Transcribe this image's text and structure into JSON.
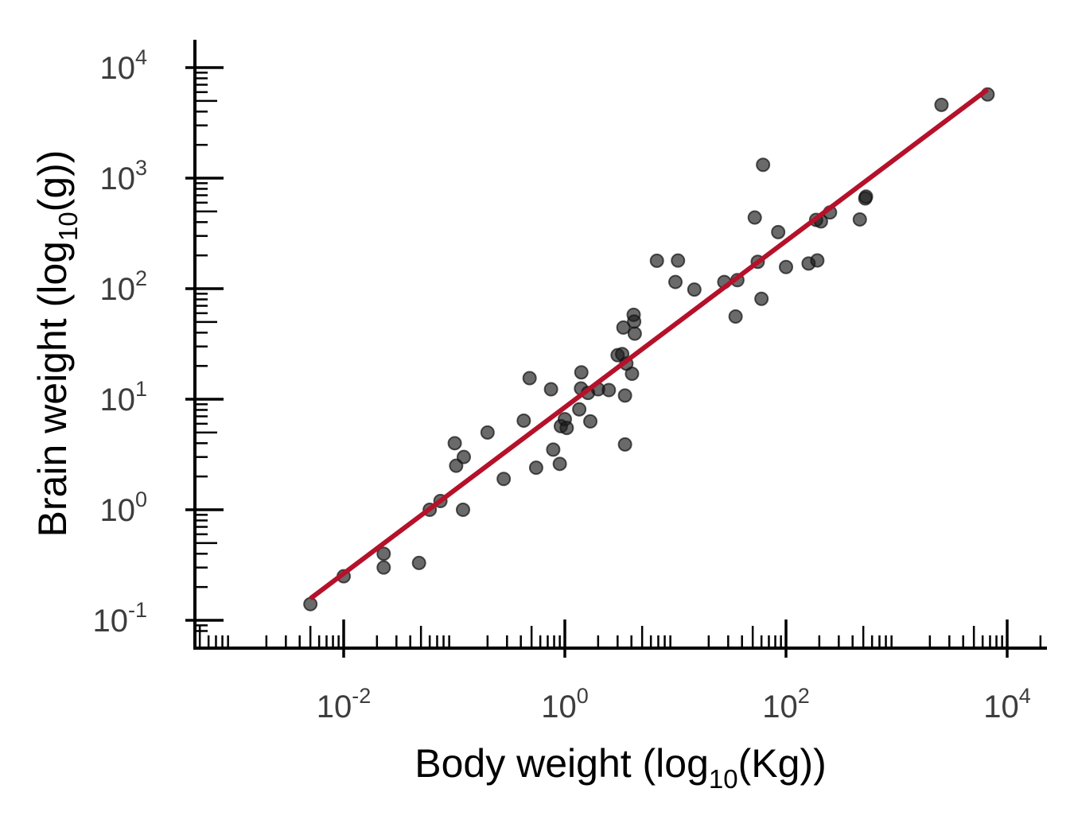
{
  "chart_data": {
    "type": "scatter",
    "xlabel": {
      "main": "Body weight (log",
      "sub": "10",
      "tail": "(Kg))"
    },
    "ylabel": {
      "main": "Brain weight (log",
      "sub": "10",
      "tail": "(g))"
    },
    "x_scale": "log10",
    "y_scale": "log10",
    "xlim": [
      0.0005,
      20000
    ],
    "ylim": [
      0.077,
      15000
    ],
    "x_ticks": [
      {
        "value": 0.01,
        "base": "10",
        "exp": "-2"
      },
      {
        "value": 1,
        "base": "10",
        "exp": "0"
      },
      {
        "value": 100,
        "base": "10",
        "exp": "2"
      },
      {
        "value": 10000,
        "base": "10",
        "exp": "4"
      }
    ],
    "y_ticks": [
      {
        "value": 0.1,
        "base": "10",
        "exp": "-1"
      },
      {
        "value": 1,
        "base": "10",
        "exp": "0"
      },
      {
        "value": 10,
        "base": "10",
        "exp": "1"
      },
      {
        "value": 100,
        "base": "10",
        "exp": "2"
      },
      {
        "value": 1000,
        "base": "10",
        "exp": "3"
      },
      {
        "value": 10000,
        "base": "10",
        "exp": "4"
      }
    ],
    "grid": false,
    "legend": "none",
    "colors": {
      "points": "#1a1a1a",
      "fit_line": "#b5112a",
      "axis": "#000000"
    },
    "points": [
      {
        "x": 0.005,
        "y": 0.14
      },
      {
        "x": 0.01,
        "y": 0.25
      },
      {
        "x": 0.023,
        "y": 0.4
      },
      {
        "x": 0.023,
        "y": 0.3
      },
      {
        "x": 0.048,
        "y": 0.33
      },
      {
        "x": 0.06,
        "y": 1.0
      },
      {
        "x": 0.075,
        "y": 1.2
      },
      {
        "x": 0.101,
        "y": 4.0
      },
      {
        "x": 0.104,
        "y": 2.5
      },
      {
        "x": 0.12,
        "y": 1.0
      },
      {
        "x": 0.122,
        "y": 3.0
      },
      {
        "x": 0.2,
        "y": 5.0
      },
      {
        "x": 0.28,
        "y": 1.9
      },
      {
        "x": 0.425,
        "y": 6.4
      },
      {
        "x": 0.48,
        "y": 15.5
      },
      {
        "x": 0.55,
        "y": 2.4
      },
      {
        "x": 0.75,
        "y": 12.3
      },
      {
        "x": 0.785,
        "y": 3.5
      },
      {
        "x": 0.9,
        "y": 2.6
      },
      {
        "x": 0.92,
        "y": 5.7
      },
      {
        "x": 1.0,
        "y": 6.6
      },
      {
        "x": 1.04,
        "y": 5.5
      },
      {
        "x": 1.35,
        "y": 8.1
      },
      {
        "x": 1.41,
        "y": 17.5
      },
      {
        "x": 1.4,
        "y": 12.5
      },
      {
        "x": 1.62,
        "y": 11.4
      },
      {
        "x": 1.7,
        "y": 6.3
      },
      {
        "x": 2.0,
        "y": 12.3
      },
      {
        "x": 2.5,
        "y": 12.1
      },
      {
        "x": 3.0,
        "y": 25.0
      },
      {
        "x": 3.3,
        "y": 25.6
      },
      {
        "x": 3.385,
        "y": 44.5
      },
      {
        "x": 3.5,
        "y": 10.8
      },
      {
        "x": 3.5,
        "y": 3.9
      },
      {
        "x": 3.6,
        "y": 21.0
      },
      {
        "x": 4.05,
        "y": 17.0
      },
      {
        "x": 4.19,
        "y": 58.0
      },
      {
        "x": 4.235,
        "y": 50.4
      },
      {
        "x": 4.288,
        "y": 39.2
      },
      {
        "x": 6.8,
        "y": 179.0
      },
      {
        "x": 10.0,
        "y": 115.0
      },
      {
        "x": 10.55,
        "y": 179.5
      },
      {
        "x": 14.83,
        "y": 98.2
      },
      {
        "x": 27.66,
        "y": 115.0
      },
      {
        "x": 35.0,
        "y": 56.0
      },
      {
        "x": 36.33,
        "y": 119.5
      },
      {
        "x": 52.16,
        "y": 440.0
      },
      {
        "x": 55.5,
        "y": 175.0
      },
      {
        "x": 60.0,
        "y": 81.0
      },
      {
        "x": 62.0,
        "y": 1320.0
      },
      {
        "x": 85.0,
        "y": 325.0
      },
      {
        "x": 100.0,
        "y": 157.0
      },
      {
        "x": 160.0,
        "y": 169.0
      },
      {
        "x": 187.1,
        "y": 419.0
      },
      {
        "x": 192.0,
        "y": 180.0
      },
      {
        "x": 207.0,
        "y": 406.0
      },
      {
        "x": 250.0,
        "y": 490.0
      },
      {
        "x": 465.0,
        "y": 423.0
      },
      {
        "x": 521.0,
        "y": 655.0
      },
      {
        "x": 529.0,
        "y": 680.0
      },
      {
        "x": 2547.0,
        "y": 4603.0
      },
      {
        "x": 6654.0,
        "y": 5712.0
      }
    ],
    "fit_line": {
      "x_start": 0.005,
      "x_end": 6654,
      "intercept_log10": 0.927,
      "slope": 0.752
    }
  }
}
